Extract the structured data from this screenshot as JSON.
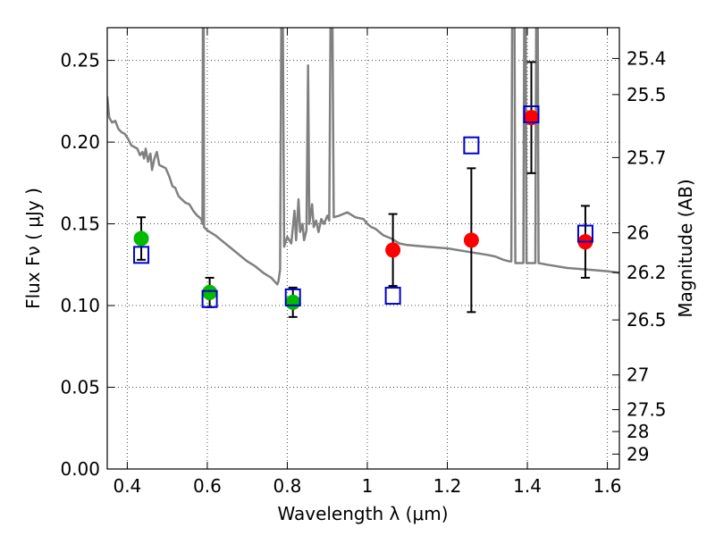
{
  "chart_data": {
    "type": "scatter",
    "title": "",
    "xlabel": "Wavelength  λ (μm)",
    "ylabel": "Flux  Fν  ( μJy )",
    "ylabel_right": "Magnitude (AB)",
    "xlim": [
      0.35,
      1.63
    ],
    "ylim": [
      0,
      0.27
    ],
    "grid": true,
    "x_ticks": [
      0.4,
      0.6,
      0.8,
      1.0,
      1.2,
      1.4,
      1.6
    ],
    "x_tick_labels": [
      "0.4",
      "0.6",
      "0.8",
      "1",
      "1.2",
      "1.4",
      "1.6"
    ],
    "y_ticks": [
      0.0,
      0.05,
      0.1,
      0.15,
      0.2,
      0.25
    ],
    "y_tick_labels": [
      "0.00",
      "0.05",
      "0.10",
      "0.15",
      "0.20",
      "0.25"
    ],
    "mag_ticks": [
      25.4,
      25.5,
      25.7,
      26,
      26.2,
      26.5,
      27,
      27.5,
      28,
      29
    ],
    "mag_tick_labels": [
      "25.4",
      "25.5",
      "25.7",
      "26",
      "26.2",
      "26.5",
      "27",
      "27.5",
      "28",
      "29"
    ],
    "series": [
      {
        "marker": "green-circle",
        "color": "#00bb00",
        "points": [
          {
            "x": 0.435,
            "y": 0.141,
            "err": 0.013
          },
          {
            "x": 0.606,
            "y": 0.108,
            "err": 0.009
          },
          {
            "x": 0.814,
            "y": 0.102,
            "err": 0.009
          }
        ]
      },
      {
        "marker": "red-circle",
        "color": "#ff0000",
        "points": [
          {
            "x": 1.064,
            "y": 0.134,
            "err": 0.022
          },
          {
            "x": 1.26,
            "y": 0.14,
            "err": 0.044
          },
          {
            "x": 1.41,
            "y": 0.215,
            "err": 0.034
          },
          {
            "x": 1.545,
            "y": 0.139,
            "err": 0.022
          }
        ]
      },
      {
        "marker": "blue-square",
        "color": "#0000cc",
        "points": [
          {
            "x": 0.435,
            "y": 0.131
          },
          {
            "x": 0.606,
            "y": 0.104
          },
          {
            "x": 0.814,
            "y": 0.105
          },
          {
            "x": 1.064,
            "y": 0.106
          },
          {
            "x": 1.26,
            "y": 0.198
          },
          {
            "x": 1.41,
            "y": 0.217
          },
          {
            "x": 1.545,
            "y": 0.144
          }
        ]
      },
      {
        "marker": "sed-model-line",
        "color": "#808080",
        "line": [
          [
            0.35,
            0.228
          ],
          [
            0.355,
            0.215
          ],
          [
            0.362,
            0.212
          ],
          [
            0.37,
            0.213
          ],
          [
            0.378,
            0.208
          ],
          [
            0.386,
            0.206
          ],
          [
            0.394,
            0.205
          ],
          [
            0.402,
            0.202
          ],
          [
            0.41,
            0.198
          ],
          [
            0.418,
            0.197
          ],
          [
            0.425,
            0.196
          ],
          [
            0.432,
            0.192
          ],
          [
            0.438,
            0.194
          ],
          [
            0.442,
            0.19
          ],
          [
            0.446,
            0.196
          ],
          [
            0.452,
            0.188
          ],
          [
            0.458,
            0.193
          ],
          [
            0.462,
            0.183
          ],
          [
            0.468,
            0.19
          ],
          [
            0.474,
            0.194
          ],
          [
            0.48,
            0.186
          ],
          [
            0.488,
            0.185
          ],
          [
            0.496,
            0.184
          ],
          [
            0.505,
            0.179
          ],
          [
            0.513,
            0.173
          ],
          [
            0.52,
            0.172
          ],
          [
            0.528,
            0.167
          ],
          [
            0.536,
            0.165
          ],
          [
            0.545,
            0.163
          ],
          [
            0.555,
            0.162
          ],
          [
            0.565,
            0.158
          ],
          [
            0.575,
            0.155
          ],
          [
            0.585,
            0.153
          ],
          [
            0.588,
            0.15
          ],
          [
            0.589,
            0.27
          ],
          [
            0.591,
            0.27
          ],
          [
            0.592,
            0.148
          ],
          [
            0.6,
            0.146
          ],
          [
            0.62,
            0.143
          ],
          [
            0.64,
            0.139
          ],
          [
            0.66,
            0.135
          ],
          [
            0.68,
            0.131
          ],
          [
            0.7,
            0.127
          ],
          [
            0.72,
            0.124
          ],
          [
            0.74,
            0.12
          ],
          [
            0.76,
            0.117
          ],
          [
            0.775,
            0.113
          ],
          [
            0.778,
            0.115
          ],
          [
            0.782,
            0.122
          ],
          [
            0.785,
            0.27
          ],
          [
            0.789,
            0.27
          ],
          [
            0.792,
            0.136
          ],
          [
            0.8,
            0.142
          ],
          [
            0.81,
            0.138
          ],
          [
            0.818,
            0.158
          ],
          [
            0.822,
            0.14
          ],
          [
            0.828,
            0.165
          ],
          [
            0.832,
            0.145
          ],
          [
            0.838,
            0.15
          ],
          [
            0.842,
            0.14
          ],
          [
            0.848,
            0.146
          ],
          [
            0.852,
            0.247
          ],
          [
            0.855,
            0.15
          ],
          [
            0.862,
            0.162
          ],
          [
            0.866,
            0.148
          ],
          [
            0.872,
            0.152
          ],
          [
            0.878,
            0.145
          ],
          [
            0.885,
            0.153
          ],
          [
            0.892,
            0.15
          ],
          [
            0.9,
            0.155
          ],
          [
            0.905,
            0.152
          ],
          [
            0.908,
            0.27
          ],
          [
            0.913,
            0.27
          ],
          [
            0.916,
            0.154
          ],
          [
            0.93,
            0.155
          ],
          [
            0.95,
            0.157
          ],
          [
            0.97,
            0.154
          ],
          [
            0.99,
            0.153
          ],
          [
            1.0,
            0.15
          ],
          [
            1.01,
            0.148
          ],
          [
            1.02,
            0.147
          ],
          [
            1.04,
            0.143
          ],
          [
            1.06,
            0.141
          ],
          [
            1.08,
            0.138
          ],
          [
            1.1,
            0.137
          ],
          [
            1.15,
            0.136
          ],
          [
            1.2,
            0.135
          ],
          [
            1.25,
            0.133
          ],
          [
            1.3,
            0.131
          ],
          [
            1.32,
            0.13
          ],
          [
            1.34,
            0.128
          ],
          [
            1.355,
            0.127
          ],
          [
            1.36,
            0.127
          ],
          [
            1.362,
            0.27
          ],
          [
            1.368,
            0.27
          ],
          [
            1.37,
            0.126
          ],
          [
            1.39,
            0.126
          ],
          [
            1.392,
            0.27
          ],
          [
            1.396,
            0.27
          ],
          [
            1.398,
            0.126
          ],
          [
            1.42,
            0.126
          ],
          [
            1.422,
            0.27
          ],
          [
            1.426,
            0.27
          ],
          [
            1.428,
            0.126
          ],
          [
            1.45,
            0.125
          ],
          [
            1.5,
            0.123
          ],
          [
            1.55,
            0.122
          ],
          [
            1.6,
            0.121
          ],
          [
            1.63,
            0.12
          ]
        ]
      }
    ]
  }
}
